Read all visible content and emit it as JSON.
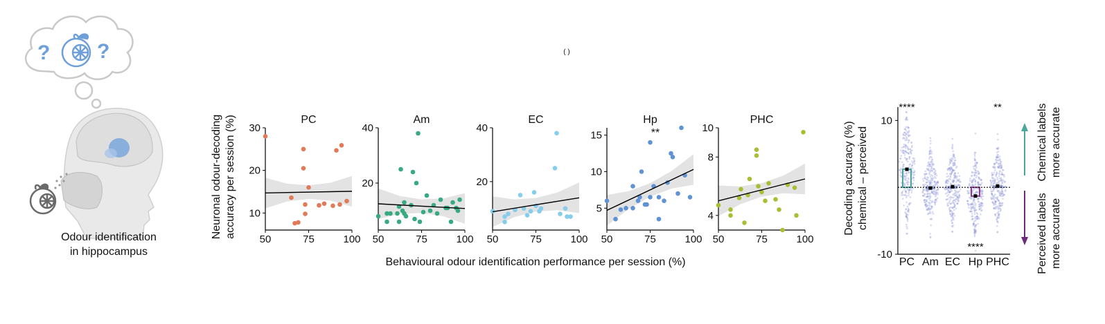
{
  "panel_mark": "( )",
  "schematic": {
    "caption_line1": "Odour identification",
    "caption_line2": "in hippocampus",
    "accent_color": "#7aa7dd"
  },
  "scatter": {
    "ylabel_line1": "Neuronal odour-decoding",
    "ylabel_line2": "accuracy per session (%)",
    "xlabel": "Behavioural odour identification performance per session (%)"
  },
  "violin": {
    "ylabel_line1": "Decoding accuracy (%)",
    "ylabel_line2": "chemical – perceived",
    "arrow_up_line1": "Chemical labels",
    "arrow_up_line2": "more accurate",
    "arrow_down_line1": "Perceived labels",
    "arrow_down_line2": "more accurate",
    "arrow_up_color": "#4aa79a",
    "arrow_down_color": "#6b2a7a"
  },
  "chart_data": [
    {
      "type": "scatter",
      "title": "PC",
      "color": "#e07a58",
      "xlim": [
        50,
        100
      ],
      "ylim": [
        6,
        30
      ],
      "xticks": [
        50,
        75,
        100
      ],
      "yticks": [
        10,
        20,
        30
      ],
      "x": [
        50,
        65,
        67,
        69,
        72,
        72,
        73,
        73,
        75,
        81,
        84,
        89,
        91,
        93,
        94,
        97
      ],
      "y": [
        28,
        13.6,
        7.6,
        7.8,
        25,
        20.5,
        9.8,
        12,
        16,
        11.8,
        12.2,
        11.7,
        24.7,
        12,
        25.9,
        12.8
      ],
      "fit": [
        14.7,
        15.1
      ],
      "significance": ""
    },
    {
      "type": "scatter",
      "title": "Am",
      "color": "#38a980",
      "xlim": [
        50,
        100
      ],
      "ylim": [
        3,
        40
      ],
      "xticks": [
        50,
        75,
        100
      ],
      "yticks": [
        20,
        40
      ],
      "x": [
        50,
        55,
        55,
        57,
        61,
        62,
        62,
        63,
        64,
        65,
        65,
        66,
        69,
        70,
        71,
        72,
        73,
        74,
        76,
        78,
        80,
        82,
        84,
        86,
        89,
        90,
        92,
        93,
        95,
        96,
        97
      ],
      "y": [
        8,
        9,
        6,
        9,
        9,
        11.5,
        6,
        25,
        10,
        9,
        13,
        8,
        12,
        24,
        7,
        20,
        38,
        6,
        9.5,
        15.5,
        10,
        12,
        9,
        14,
        11,
        11,
        6,
        13,
        11,
        10,
        14
      ],
      "fit": [
        12.5,
        10.8
      ],
      "significance": ""
    },
    {
      "type": "scatter",
      "title": "EC",
      "color": "#85cdeb",
      "xlim": [
        50,
        100
      ],
      "ylim": [
        2,
        40
      ],
      "xticks": [
        50,
        75,
        100
      ],
      "yticks": [
        20,
        40
      ],
      "x": [
        50,
        57,
        57,
        59,
        63,
        66,
        68,
        70,
        72,
        74,
        75,
        77,
        78,
        86,
        87,
        89,
        92,
        93,
        95
      ],
      "y": [
        9,
        7,
        5,
        8,
        9.5,
        15,
        10,
        7.5,
        9,
        16,
        11,
        9,
        10,
        25,
        38,
        8,
        10,
        7,
        7
      ],
      "fit": [
        8.8,
        14.0
      ],
      "significance": ""
    },
    {
      "type": "scatter",
      "title": "Hp",
      "color": "#5f93d4",
      "xlim": [
        50,
        100
      ],
      "ylim": [
        2,
        16
      ],
      "xticks": [
        50,
        75,
        100
      ],
      "yticks": [
        5,
        10,
        15
      ],
      "x": [
        50,
        55,
        58,
        61,
        65,
        65,
        68,
        69,
        70,
        72,
        73,
        75,
        75,
        77,
        80,
        80,
        83,
        85,
        87,
        88,
        91,
        93,
        95,
        98
      ],
      "y": [
        6,
        3.5,
        4.8,
        5,
        5,
        8,
        6,
        6.5,
        10,
        5.5,
        5.5,
        14,
        6.5,
        8,
        3.5,
        6.5,
        6,
        8.5,
        12.5,
        12,
        7,
        16,
        9.5,
        6.5
      ],
      "fit": [
        4.7,
        10.3
      ],
      "significance": "**"
    },
    {
      "type": "scatter",
      "title": "PHC",
      "color": "#a8bf35",
      "xlim": [
        50,
        100
      ],
      "ylim": [
        3,
        10
      ],
      "xticks": [
        50,
        75,
        100
      ],
      "yticks": [
        4,
        8,
        10
      ],
      "x": [
        50,
        57,
        57,
        62,
        63,
        65,
        67,
        68,
        72,
        72,
        73,
        75,
        77,
        79,
        83,
        85,
        87,
        90,
        94,
        95,
        99
      ],
      "y": [
        4.7,
        4,
        4.4,
        5.2,
        5.8,
        3.5,
        5.4,
        6.5,
        8.5,
        8.1,
        6,
        5.6,
        5,
        6.2,
        5.1,
        4.4,
        3,
        6.1,
        5.9,
        4,
        9.7
      ],
      "fit": [
        5.0,
        6.5
      ],
      "significance": ""
    },
    {
      "type": "violin",
      "categories": [
        "PC",
        "Am",
        "EC",
        "Hp",
        "PHC"
      ],
      "ylim": [
        -10,
        12
      ],
      "yticks": [
        -10,
        10
      ],
      "medians": [
        2.7,
        -0.1,
        0.1,
        -1.3,
        0.2
      ],
      "box_top": [
        2.7,
        0,
        0.1,
        0,
        0.2
      ],
      "box_bottom": [
        0,
        -0.1,
        0,
        -1.3,
        0
      ],
      "box_colors": [
        "#4aa79a",
        "#9099c8",
        "#9099c8",
        "#8e3c8e",
        "#9099c8"
      ],
      "significance": [
        "****",
        "",
        "",
        "****",
        "**"
      ],
      "spread": [
        4.5,
        3,
        3,
        3.2,
        3
      ]
    }
  ]
}
